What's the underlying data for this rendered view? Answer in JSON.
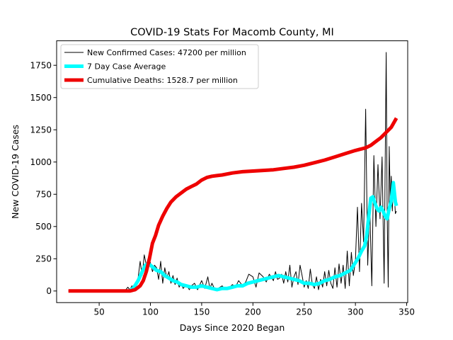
{
  "chart_data": {
    "type": "line",
    "title": "COVID-19 Stats For Macomb County, MI",
    "xlabel": "Days Since 2020 Began",
    "ylabel": "New COVID-19 Cases",
    "xlim": [
      8.5,
      351
    ],
    "ylim": [
      -90,
      1940
    ],
    "xticks": [
      50,
      100,
      150,
      200,
      250,
      300,
      350
    ],
    "yticks": [
      0,
      250,
      500,
      750,
      1000,
      1250,
      1500,
      1750
    ],
    "grid": false,
    "legend_position": "top-left",
    "series": [
      {
        "name": "New Confirmed Cases: 47200 per million",
        "color": "#000000",
        "width": 1,
        "x": [
          20,
          60,
          75,
          78,
          80,
          82,
          84,
          86,
          88,
          90,
          92,
          94,
          96,
          98,
          100,
          102,
          104,
          106,
          108,
          110,
          112,
          114,
          116,
          118,
          120,
          122,
          124,
          126,
          128,
          130,
          132,
          135,
          138,
          140,
          143,
          146,
          150,
          153,
          156,
          158,
          160,
          163,
          166,
          170,
          173,
          176,
          180,
          183,
          186,
          190,
          193,
          196,
          200,
          203,
          206,
          210,
          213,
          216,
          220,
          222,
          224,
          226,
          228,
          230,
          232,
          234,
          236,
          238,
          240,
          242,
          244,
          246,
          248,
          250,
          252,
          254,
          256,
          258,
          260,
          262,
          264,
          266,
          268,
          270,
          272,
          274,
          276,
          278,
          280,
          282,
          284,
          286,
          288,
          290,
          292,
          294,
          296,
          298,
          300,
          302,
          304,
          306,
          308,
          310,
          312,
          314,
          316,
          318,
          320,
          322,
          324,
          326,
          328,
          330,
          331,
          332,
          333,
          334,
          335,
          336,
          337,
          338,
          339,
          340
        ],
        "values": [
          0,
          0,
          0,
          30,
          10,
          40,
          20,
          70,
          100,
          230,
          120,
          280,
          200,
          260,
          220,
          150,
          200,
          180,
          90,
          230,
          60,
          180,
          100,
          150,
          60,
          120,
          50,
          100,
          30,
          60,
          20,
          50,
          10,
          40,
          60,
          10,
          80,
          20,
          110,
          20,
          60,
          10,
          20,
          40,
          10,
          20,
          50,
          30,
          80,
          40,
          70,
          130,
          110,
          30,
          140,
          110,
          70,
          130,
          80,
          150,
          90,
          100,
          130,
          60,
          150,
          70,
          200,
          30,
          110,
          150,
          50,
          200,
          120,
          30,
          80,
          20,
          170,
          50,
          20,
          110,
          10,
          90,
          30,
          150,
          40,
          160,
          60,
          20,
          180,
          30,
          210,
          60,
          200,
          20,
          310,
          40,
          300,
          120,
          230,
          650,
          150,
          680,
          380,
          1410,
          200,
          650,
          40,
          1050,
          500,
          980,
          560,
          1040,
          60,
          1850,
          600,
          30,
          1120,
          700,
          890,
          620,
          850,
          730,
          600,
          620
        ]
      },
      {
        "name": "7 Day Case Average",
        "color": "#00ffff",
        "width": 5,
        "x": [
          80,
          84,
          88,
          92,
          95,
          98,
          100,
          103,
          106,
          110,
          114,
          118,
          122,
          126,
          130,
          135,
          140,
          145,
          150,
          155,
          160,
          165,
          170,
          175,
          180,
          185,
          190,
          195,
          200,
          205,
          210,
          215,
          220,
          225,
          230,
          235,
          240,
          245,
          250,
          255,
          260,
          265,
          270,
          275,
          280,
          285,
          290,
          295,
          300,
          303,
          306,
          309,
          311,
          313,
          315,
          317,
          319,
          321,
          323,
          325,
          327,
          329,
          331,
          333,
          335,
          337,
          339,
          340
        ],
        "values": [
          0,
          30,
          80,
          150,
          200,
          210,
          200,
          180,
          160,
          150,
          120,
          100,
          80,
          70,
          50,
          40,
          30,
          30,
          40,
          30,
          20,
          10,
          20,
          20,
          30,
          40,
          40,
          60,
          70,
          80,
          90,
          100,
          110,
          120,
          110,
          100,
          90,
          80,
          60,
          60,
          50,
          60,
          80,
          90,
          110,
          120,
          140,
          160,
          220,
          260,
          310,
          350,
          430,
          580,
          720,
          730,
          680,
          640,
          620,
          650,
          620,
          580,
          560,
          640,
          700,
          840,
          690,
          660
        ]
      },
      {
        "name": "Cumulative Deaths: 1528.7 per million",
        "color": "#ee0000",
        "width": 5,
        "x": [
          20,
          60,
          80,
          85,
          90,
          93,
          96,
          99,
          102,
          105,
          108,
          112,
          116,
          120,
          125,
          130,
          135,
          140,
          145,
          150,
          155,
          160,
          165,
          170,
          180,
          190,
          200,
          210,
          220,
          230,
          240,
          250,
          260,
          270,
          280,
          290,
          300,
          310,
          315,
          320,
          325,
          330,
          335,
          340
        ],
        "values": [
          0,
          0,
          0,
          10,
          40,
          80,
          150,
          250,
          370,
          430,
          510,
          580,
          640,
          690,
          730,
          760,
          790,
          810,
          830,
          860,
          880,
          890,
          895,
          900,
          915,
          925,
          930,
          935,
          940,
          950,
          960,
          975,
          995,
          1015,
          1040,
          1065,
          1090,
          1110,
          1130,
          1160,
          1190,
          1230,
          1270,
          1340
        ]
      }
    ]
  }
}
